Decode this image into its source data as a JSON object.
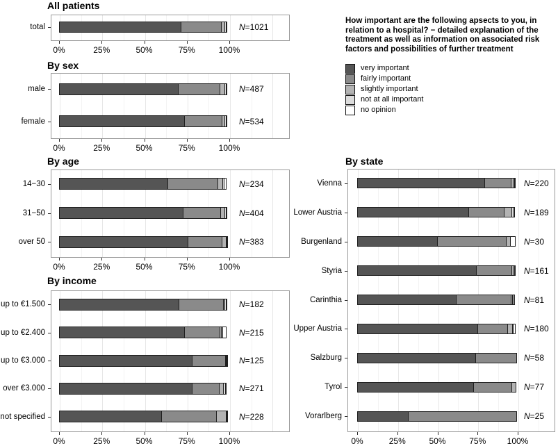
{
  "legend": {
    "title": "How important are the following apsects to you, in relation to a hospital? − detailed explanation of the treatment as well as information on associated risk factors and possibilities of further treatment",
    "items": [
      {
        "label": "very important",
        "color": "#555555"
      },
      {
        "label": "fairly important",
        "color": "#8a8a8a"
      },
      {
        "label": "slightly important",
        "color": "#b3b3b3"
      },
      {
        "label": "not at all important",
        "color": "#dcdcdc"
      },
      {
        "label": "no opinion",
        "color": "#ffffff"
      }
    ]
  },
  "colors": {
    "segment_border": "#1f1f1f",
    "panel_border": "#989898",
    "grid_major": "#e7e7e7",
    "grid_minor": "#f3f3f3",
    "text": "#000000"
  },
  "chart_data": [
    {
      "type": "bar",
      "orientation": "horizontal",
      "stacked": true,
      "title": "All patients",
      "categories": [
        "total"
      ],
      "n_labels": [
        "N=1021"
      ],
      "series": [
        {
          "name": "very important",
          "values": [
            72
          ]
        },
        {
          "name": "fairly important",
          "values": [
            24
          ]
        },
        {
          "name": "slightly important",
          "values": [
            2.5
          ]
        },
        {
          "name": "not at all important",
          "values": [
            1
          ]
        },
        {
          "name": "no opinion",
          "values": [
            0.5
          ]
        }
      ],
      "xlim": [
        0,
        100
      ],
      "x_ticks": [
        "0%",
        "25%",
        "50%",
        "75%",
        "100%"
      ]
    },
    {
      "type": "bar",
      "orientation": "horizontal",
      "stacked": true,
      "title": "By sex",
      "categories": [
        "male",
        "female"
      ],
      "n_labels": [
        "N=487",
        "N=534"
      ],
      "series": [
        {
          "name": "very important",
          "values": [
            70,
            74
          ]
        },
        {
          "name": "fairly important",
          "values": [
            25,
            22.5
          ]
        },
        {
          "name": "slightly important",
          "values": [
            3.5,
            2
          ]
        },
        {
          "name": "not at all important",
          "values": [
            1,
            1
          ]
        },
        {
          "name": "no opinion",
          "values": [
            0.5,
            0.5
          ]
        }
      ],
      "xlim": [
        0,
        100
      ],
      "x_ticks": [
        "0%",
        "25%",
        "50%",
        "75%",
        "100%"
      ]
    },
    {
      "type": "bar",
      "orientation": "horizontal",
      "stacked": true,
      "title": "By age",
      "categories": [
        "14−30",
        "31−50",
        "over 50"
      ],
      "n_labels": [
        "N=234",
        "N=404",
        "N=383"
      ],
      "series": [
        {
          "name": "very important",
          "values": [
            64,
            73,
            76
          ]
        },
        {
          "name": "fairly important",
          "values": [
            30,
            22.5,
            20.5
          ]
        },
        {
          "name": "slightly important",
          "values": [
            3,
            3,
            2.5
          ]
        },
        {
          "name": "not at all important",
          "values": [
            1.5,
            1,
            0.5
          ]
        },
        {
          "name": "no opinion",
          "values": [
            1.5,
            0.5,
            0.5
          ]
        }
      ],
      "xlim": [
        0,
        100
      ],
      "x_ticks": [
        "0%",
        "25%",
        "50%",
        "75%",
        "100%"
      ]
    },
    {
      "type": "bar",
      "orientation": "horizontal",
      "stacked": true,
      "title": "By income",
      "categories": [
        "up to €1.500",
        "up to €2.400",
        "up to €3.000",
        "over €3.000",
        "not specified"
      ],
      "n_labels": [
        "N=182",
        "N=215",
        "N=125",
        "N=271",
        "N=228"
      ],
      "series": [
        {
          "name": "very important",
          "values": [
            70.5,
            74,
            78.5,
            78.5,
            60.5
          ]
        },
        {
          "name": "fairly important",
          "values": [
            26.5,
            21,
            20,
            16,
            32.5
          ]
        },
        {
          "name": "slightly important",
          "values": [
            1.5,
            1.5,
            0.8,
            3,
            6
          ]
        },
        {
          "name": "not at all important",
          "values": [
            1,
            1,
            0.4,
            1.5,
            0.5
          ]
        },
        {
          "name": "no opinion",
          "values": [
            0.5,
            2.5,
            0.3,
            1,
            0.5
          ]
        }
      ],
      "xlim": [
        0,
        100
      ],
      "x_ticks": [
        "0%",
        "25%",
        "50%",
        "75%",
        "100%"
      ]
    },
    {
      "type": "bar",
      "orientation": "horizontal",
      "stacked": true,
      "title": "By state",
      "categories": [
        "Vienna",
        "Lower Austria",
        "Burgenland",
        "Styria",
        "Carinthia",
        "Upper Austria",
        "Salzburg",
        "Tyrol",
        "Vorarlberg"
      ],
      "n_labels": [
        "N=220",
        "N=189",
        "N=30",
        "N=161",
        "N=81",
        "N=180",
        "N=58",
        "N=77",
        "N=25"
      ],
      "series": [
        {
          "name": "very important",
          "values": [
            79.5,
            69.5,
            50,
            74.5,
            62,
            75.5,
            74.1,
            72.7,
            32
          ]
        },
        {
          "name": "fairly important",
          "values": [
            17,
            22.5,
            43.3,
            22.4,
            34.6,
            18.9,
            25.9,
            24.3,
            68
          ]
        },
        {
          "name": "slightly important",
          "values": [
            2,
            5.5,
            3.3,
            1.2,
            1.2,
            3.4,
            0,
            3,
            0
          ]
        },
        {
          "name": "not at all important",
          "values": [
            1,
            1.5,
            0,
            1.3,
            1.1,
            0.5,
            0,
            0,
            0
          ]
        },
        {
          "name": "no opinion",
          "values": [
            0.5,
            1,
            3.4,
            0.6,
            1.1,
            1.7,
            0,
            0,
            0
          ]
        }
      ],
      "xlim": [
        0,
        100
      ],
      "x_ticks": [
        "0%",
        "25%",
        "50%",
        "75%",
        "100%"
      ]
    }
  ]
}
